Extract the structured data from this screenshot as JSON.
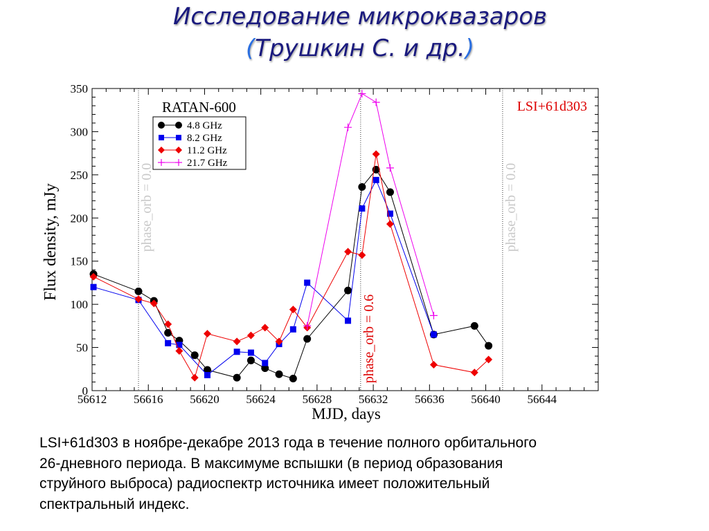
{
  "slide": {
    "title": "Исследование микроквазаров",
    "subtitle_open": "(",
    "subtitle_text": "Трушкин С. и др.",
    "subtitle_close": ")",
    "caption_lines": [
      "LSI+61d303 в ноябре-декабре 2013 года  в течение  полного орбитального",
      "26-дневного периода.  В максимуме вспышки (в период образования",
      "струйного выброса) радиоспектр источника имеет положительный",
      "спектральный индекс."
    ]
  },
  "chart_data": {
    "type": "line",
    "instrument_label": "RATAN-600",
    "source_label": "LSI+61d303",
    "xlabel": "MJD, days",
    "ylabel": "Flux density, mJy",
    "xlim": [
      56612,
      56648
    ],
    "ylim": [
      0,
      350
    ],
    "xticks": [
      56612,
      56616,
      56620,
      56624,
      56628,
      56632,
      56636,
      56640,
      56644
    ],
    "yticks": [
      0,
      50,
      100,
      150,
      200,
      250,
      300,
      350
    ],
    "grid": false,
    "legend_position": "top-left",
    "phase_lines": [
      {
        "x": 56615.3,
        "label": "phase_orb = 0.0",
        "color": "#c8c8c8"
      },
      {
        "x": 56631.1,
        "label": "phase_orb = 0.6",
        "color": "#dd0000"
      },
      {
        "x": 56641.2,
        "label": "phase_orb = 0.0",
        "color": "#c8c8c8"
      }
    ],
    "series": [
      {
        "name": "4.8 GHz",
        "color": "#000000",
        "marker": "circle",
        "x": [
          56612.1,
          56615.3,
          56616.4,
          56617.4,
          56618.2,
          56619.3,
          56620.2,
          56622.3,
          56623.3,
          56624.3,
          56625.3,
          56626.3,
          56627.3,
          56630.2,
          56631.2,
          56632.2,
          56633.2,
          56636.3,
          56639.2,
          56640.2
        ],
        "y": [
          135,
          115,
          104,
          67,
          58,
          41,
          24,
          15,
          35,
          26,
          19,
          14,
          60,
          116,
          236,
          256,
          230,
          65,
          75,
          52
        ]
      },
      {
        "name": "8.2 GHz",
        "color": "#0000ee",
        "marker": "square",
        "x": [
          56612.1,
          56615.3,
          56617.4,
          56618.2,
          56620.2,
          56622.3,
          56623.3,
          56624.3,
          56625.3,
          56626.3,
          56627.3,
          56630.2,
          56631.2,
          56632.2,
          56633.2,
          56636.3
        ],
        "y": [
          120,
          105,
          55,
          53,
          18,
          45,
          44,
          32,
          54,
          71,
          125,
          81,
          211,
          244,
          205,
          65
        ]
      },
      {
        "name": "11.2 GHz",
        "color": "#ee0000",
        "marker": "diamond",
        "x": [
          56612.1,
          56615.3,
          56616.4,
          56617.4,
          56618.2,
          56619.3,
          56620.2,
          56622.3,
          56623.3,
          56624.3,
          56625.3,
          56626.3,
          56627.3,
          56630.2,
          56631.2,
          56632.2,
          56633.2,
          56636.3,
          56639.2,
          56640.2
        ],
        "y": [
          132,
          106,
          101,
          77,
          46,
          15,
          66,
          57,
          64,
          73,
          57,
          94,
          73,
          161,
          157,
          274,
          193,
          30,
          21,
          36
        ]
      },
      {
        "name": "21.7 GHz",
        "color": "#ee00ee",
        "marker": "plus",
        "x": [
          56627.3,
          56630.2,
          56631.2,
          56632.2,
          56633.2,
          56636.3
        ],
        "y": [
          75,
          305,
          344,
          334,
          258,
          87
        ]
      }
    ]
  }
}
